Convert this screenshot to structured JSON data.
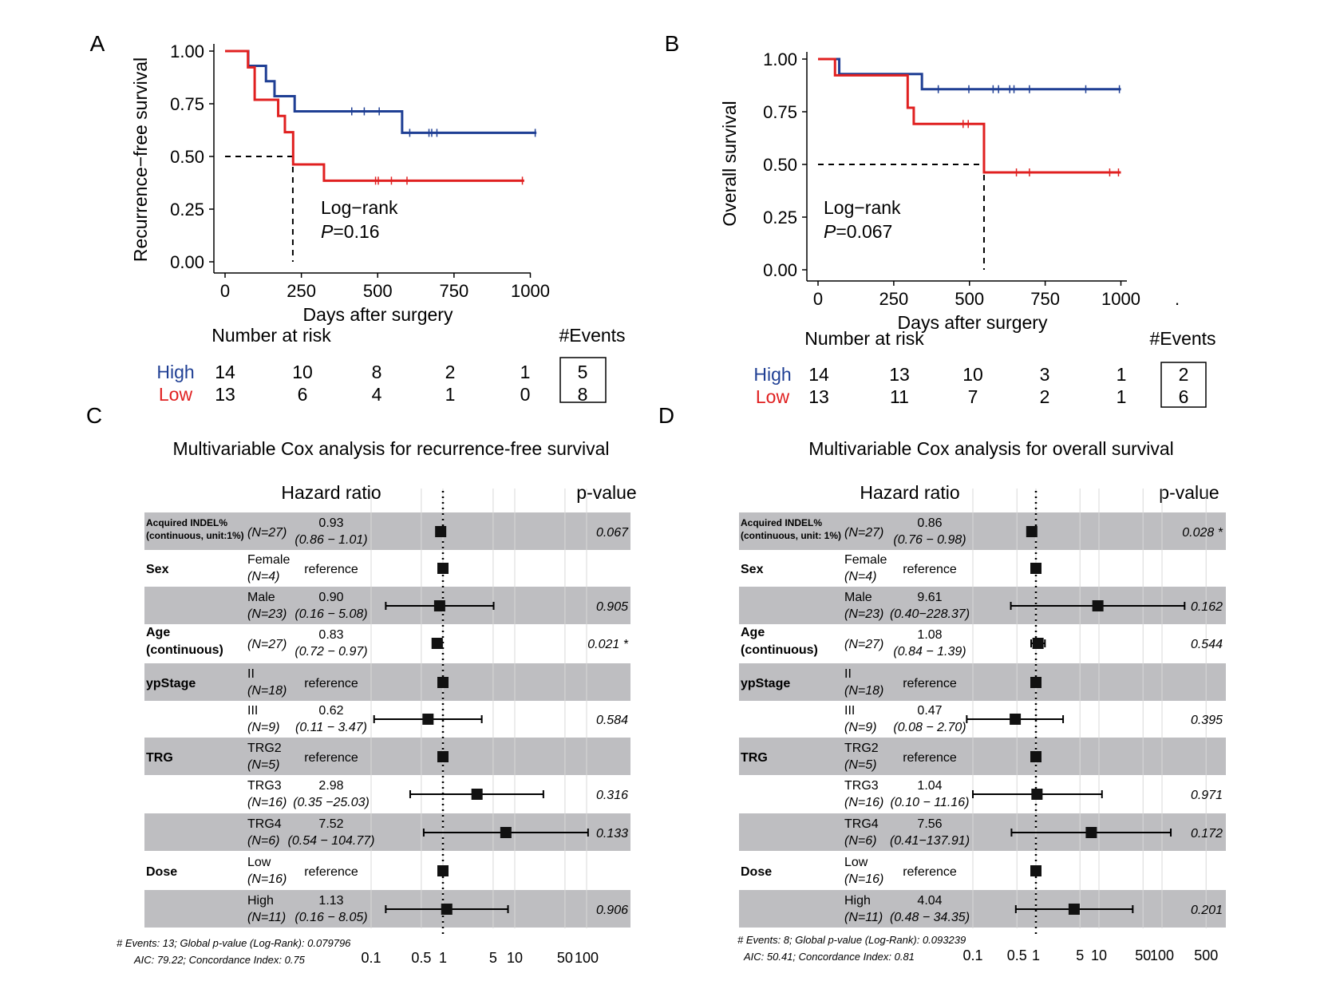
{
  "chart_data": [
    {
      "panel": "A",
      "type": "line",
      "subtype": "kaplan-meier",
      "ylabel": "Recurrence−free survival",
      "xlabel": "Days after surgery",
      "xlim": [
        0,
        1000
      ],
      "ylim": [
        0,
        1
      ],
      "xticks": [
        "0",
        "250",
        "500",
        "750",
        "1000"
      ],
      "yticks": [
        "0.00",
        "0.25",
        "0.50",
        "0.75",
        "1.00"
      ],
      "annotation": {
        "line1": "Log−rank",
        "p_label": "P",
        "p_value": "=0.16"
      },
      "median_line": {
        "y": 0.5,
        "x": 222
      },
      "series": [
        {
          "name": "High",
          "color": "#1f3f94",
          "steps": [
            [
              0,
              1.0
            ],
            [
              76,
              0.93
            ],
            [
              134,
              0.857
            ],
            [
              162,
              0.786
            ],
            [
              228,
              0.714
            ],
            [
              580,
              0.612
            ],
            [
              1020,
              0.612
            ]
          ],
          "censor": [
            [
              415,
              0.714
            ],
            [
              456,
              0.714
            ],
            [
              505,
              0.714
            ],
            [
              605,
              0.612
            ],
            [
              668,
              0.612
            ],
            [
              677,
              0.612
            ],
            [
              694,
              0.612
            ],
            [
              1016,
              0.612
            ]
          ]
        },
        {
          "name": "Low",
          "color": "#e02020",
          "steps": [
            [
              0,
              1.0
            ],
            [
              75,
              0.923
            ],
            [
              97,
              0.769
            ],
            [
              174,
              0.692
            ],
            [
              196,
              0.615
            ],
            [
              223,
              0.462
            ],
            [
              324,
              0.385
            ],
            [
              980,
              0.385
            ]
          ],
          "censor": [
            [
              493,
              0.385
            ],
            [
              502,
              0.385
            ],
            [
              545,
              0.385
            ],
            [
              596,
              0.385
            ],
            [
              974,
              0.385
            ]
          ]
        }
      ],
      "risk_table": {
        "title": "Number at risk",
        "events_title": "#Events",
        "rows": [
          {
            "label": "High",
            "color": "#1f3f94",
            "values": [
              "14",
              "10",
              "8",
              "2",
              "1"
            ],
            "events": "5"
          },
          {
            "label": "Low",
            "color": "#e02020",
            "values": [
              "13",
              "6",
              "4",
              "1",
              "0"
            ],
            "events": "8"
          }
        ]
      }
    },
    {
      "panel": "B",
      "type": "line",
      "subtype": "kaplan-meier",
      "ylabel": "Overall survival",
      "xlabel": "Days after surgery",
      "xlim": [
        0,
        1000
      ],
      "ylim": [
        0,
        1
      ],
      "xticks": [
        "0",
        "250",
        "500",
        "750",
        "1000"
      ],
      "yticks": [
        "0.00",
        "0.25",
        "0.50",
        "0.75",
        "1.00"
      ],
      "trailing_mark": ".",
      "annotation": {
        "line1": "Log−rank",
        "p_label": "P",
        "p_value": "=0.067"
      },
      "median_line": {
        "y": 0.5,
        "x": 548
      },
      "series": [
        {
          "name": "High",
          "color": "#1f3f94",
          "steps": [
            [
              0,
              1.0
            ],
            [
              70,
              0.929
            ],
            [
              343,
              0.857
            ],
            [
              1000,
              0.857
            ]
          ],
          "censor": [
            [
              397,
              0.857
            ],
            [
              498,
              0.857
            ],
            [
              578,
              0.857
            ],
            [
              596,
              0.857
            ],
            [
              633,
              0.857
            ],
            [
              647,
              0.857
            ],
            [
              698,
              0.857
            ],
            [
              884,
              0.857
            ],
            [
              995,
              0.857
            ]
          ]
        },
        {
          "name": "Low",
          "color": "#e02020",
          "steps": [
            [
              0,
              1.0
            ],
            [
              56,
              0.923
            ],
            [
              296,
              0.769
            ],
            [
              316,
              0.692
            ],
            [
              548,
              0.462
            ],
            [
              1000,
              0.462
            ]
          ],
          "censor": [
            [
              479,
              0.692
            ],
            [
              496,
              0.692
            ],
            [
              655,
              0.462
            ],
            [
              698,
              0.462
            ],
            [
              963,
              0.462
            ],
            [
              992,
              0.462
            ]
          ]
        }
      ],
      "risk_table": {
        "title": "Number at risk",
        "events_title": "#Events",
        "rows": [
          {
            "label": "High",
            "color": "#1f3f94",
            "values": [
              "14",
              "13",
              "10",
              "3",
              "1"
            ],
            "events": "2"
          },
          {
            "label": "Low",
            "color": "#e02020",
            "values": [
              "13",
              "11",
              "7",
              "2",
              "1"
            ],
            "events": "6"
          }
        ]
      }
    },
    {
      "panel": "C",
      "type": "forest",
      "title": "Multivariable Cox analysis for recurrence-free survival",
      "hr_header": "Hazard ratio",
      "p_header": "p-value",
      "xscale": "log",
      "xlim": [
        0.1,
        100
      ],
      "xticks": [
        "0.1",
        "0.5",
        "1",
        "5",
        "10",
        "50",
        "100"
      ],
      "gridlines": [
        0.1,
        0.5,
        1,
        5,
        10,
        50,
        100
      ],
      "rows": [
        {
          "var_line1": "Acquired INDEL%",
          "var_line2": "(continuous, unit:1%)",
          "level": "",
          "n": "(N=27)",
          "hr": "0.93",
          "ci": "(0.86 − 1.01)",
          "p": "0.067",
          "est": 0.93,
          "lo": 0.86,
          "hi": 1.01
        },
        {
          "var_line1": "Sex",
          "var_line2": "",
          "level": "Female",
          "n": "(N=4)",
          "hr": "reference",
          "ci": "",
          "p": "",
          "est": 1,
          "lo": null,
          "hi": null
        },
        {
          "var_line1": "",
          "var_line2": "",
          "level": "Male",
          "n": "(N=23)",
          "hr": "0.90",
          "ci": "(0.16 − 5.08)",
          "p": "0.905",
          "est": 0.9,
          "lo": 0.16,
          "hi": 5.08
        },
        {
          "var_line1": "Age",
          "var_line2": "(continuous)",
          "level": "",
          "n": "(N=27)",
          "hr": "0.83",
          "ci": "(0.72 − 0.97)",
          "p": "0.021 *",
          "est": 0.83,
          "lo": 0.72,
          "hi": 0.97
        },
        {
          "var_line1": "ypStage",
          "var_line2": "",
          "level": "II",
          "n": "(N=18)",
          "hr": "reference",
          "ci": "",
          "p": "",
          "est": 1,
          "lo": null,
          "hi": null
        },
        {
          "var_line1": "",
          "var_line2": "",
          "level": "III",
          "n": "(N=9)",
          "hr": "0.62",
          "ci": "(0.11 − 3.47)",
          "p": "0.584",
          "est": 0.62,
          "lo": 0.11,
          "hi": 3.47
        },
        {
          "var_line1": "TRG",
          "var_line2": "",
          "level": "TRG2",
          "n": "(N=5)",
          "hr": "reference",
          "ci": "",
          "p": "",
          "est": 1,
          "lo": null,
          "hi": null
        },
        {
          "var_line1": "",
          "var_line2": "",
          "level": "TRG3",
          "n": "(N=16)",
          "hr": "2.98",
          "ci": "(0.35 −25.03)",
          "p": "0.316",
          "est": 2.98,
          "lo": 0.35,
          "hi": 25.03
        },
        {
          "var_line1": "",
          "var_line2": "",
          "level": "TRG4",
          "n": "(N=6)",
          "hr": "7.52",
          "ci": "(0.54 − 104.77)",
          "p": "0.133",
          "est": 7.52,
          "lo": 0.54,
          "hi": 104.77
        },
        {
          "var_line1": "Dose",
          "var_line2": "",
          "level": "Low",
          "n": "(N=16)",
          "hr": "reference",
          "ci": "",
          "p": "",
          "est": 1,
          "lo": null,
          "hi": null
        },
        {
          "var_line1": "",
          "var_line2": "",
          "level": "High",
          "n": "(N=11)",
          "hr": "1.13",
          "ci": "(0.16 − 8.05)",
          "p": "0.906",
          "est": 1.13,
          "lo": 0.16,
          "hi": 8.05
        }
      ],
      "footer_line1": "# Events: 13; Global p-value (Log-Rank): 0.079796",
      "footer_line2": "AIC: 79.22; Concordance Index: 0.75"
    },
    {
      "panel": "D",
      "type": "forest",
      "title": "Multivariable Cox analysis for overall survival",
      "hr_header": "Hazard ratio",
      "p_header": "p-value",
      "xscale": "log",
      "xlim": [
        0.1,
        500
      ],
      "xticks": [
        "0.1",
        "0.5",
        "1",
        "5",
        "10",
        "50",
        "100",
        "500"
      ],
      "gridlines": [
        0.1,
        0.5,
        1,
        5,
        10,
        50,
        100,
        500
      ],
      "rows": [
        {
          "var_line1": "Acquired INDEL%",
          "var_line2": "(continuous, unit: 1%)",
          "level": "",
          "n": "(N=27)",
          "hr": "0.86",
          "ci": "(0.76 −  0.98)",
          "p": "0.028 *",
          "est": 0.86,
          "lo": 0.76,
          "hi": 0.98
        },
        {
          "var_line1": "Sex",
          "var_line2": "",
          "level": "Female",
          "n": "(N=4)",
          "hr": "reference",
          "ci": "",
          "p": "",
          "est": 1,
          "lo": null,
          "hi": null
        },
        {
          "var_line1": "",
          "var_line2": "",
          "level": "Male",
          "n": "(N=23)",
          "hr": "9.61",
          "ci": "(0.40−228.37)",
          "p": "0.162",
          "est": 9.61,
          "lo": 0.4,
          "hi": 228.37
        },
        {
          "var_line1": "Age",
          "var_line2": "(continuous)",
          "level": "",
          "n": "(N=27)",
          "hr": "1.08",
          "ci": "(0.84 − 1.39)",
          "p": "0.544",
          "est": 1.08,
          "lo": 0.84,
          "hi": 1.39
        },
        {
          "var_line1": "ypStage",
          "var_line2": "",
          "level": "II",
          "n": "(N=18)",
          "hr": "reference",
          "ci": "",
          "p": "",
          "est": 1,
          "lo": null,
          "hi": null
        },
        {
          "var_line1": "",
          "var_line2": "",
          "level": "III",
          "n": "(N=9)",
          "hr": "0.47",
          "ci": "(0.08 − 2.70)",
          "p": "0.395",
          "est": 0.47,
          "lo": 0.08,
          "hi": 2.7
        },
        {
          "var_line1": "TRG",
          "var_line2": "",
          "level": "TRG2",
          "n": "(N=5)",
          "hr": "reference",
          "ci": "",
          "p": "",
          "est": 1,
          "lo": null,
          "hi": null
        },
        {
          "var_line1": "",
          "var_line2": "",
          "level": "TRG3",
          "n": "(N=16)",
          "hr": "1.04",
          "ci": "(0.10 − 11.16)",
          "p": "0.971",
          "est": 1.04,
          "lo": 0.1,
          "hi": 11.16
        },
        {
          "var_line1": "",
          "var_line2": "",
          "level": "TRG4",
          "n": "(N=6)",
          "hr": "7.56",
          "ci": "(0.41−137.91)",
          "p": "0.172",
          "est": 7.56,
          "lo": 0.41,
          "hi": 137.91
        },
        {
          "var_line1": "Dose",
          "var_line2": "",
          "level": "Low",
          "n": "(N=16)",
          "hr": "reference",
          "ci": "",
          "p": "",
          "est": 1,
          "lo": null,
          "hi": null
        },
        {
          "var_line1": "",
          "var_line2": "",
          "level": "High",
          "n": "(N=11)",
          "hr": "4.04",
          "ci": "(0.48 − 34.35)",
          "p": "0.201",
          "est": 4.04,
          "lo": 0.48,
          "hi": 34.35
        }
      ],
      "footer_line1": "# Events: 8; Global p-value (Log-Rank): 0.093239",
      "footer_line2": "AIC: 50.41; Concordance Index: 0.81"
    }
  ],
  "panel_labels": [
    "A",
    "B",
    "C",
    "D"
  ]
}
